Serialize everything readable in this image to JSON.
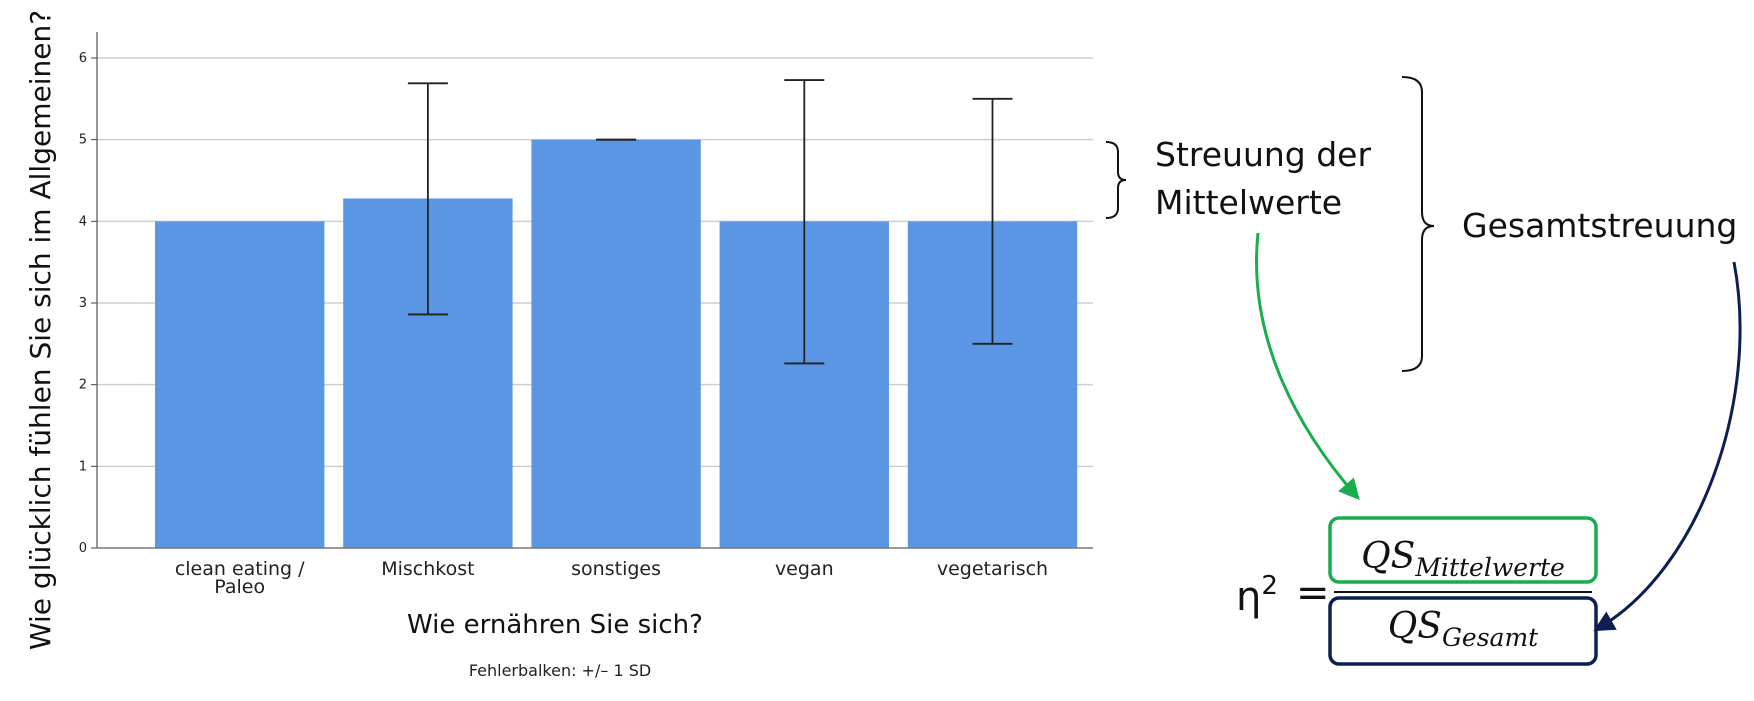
{
  "chart_data": {
    "type": "bar",
    "categories": [
      "clean eating /\nPaleo",
      "Mischkost",
      "sonstiges",
      "vegan",
      "vegetarisch"
    ],
    "values": [
      4.0,
      4.28,
      5.0,
      4.0,
      4.0
    ],
    "error_bars": [
      {
        "low": null,
        "high": null
      },
      {
        "low": 2.86,
        "high": 5.69
      },
      {
        "low": 5.0,
        "high": 5.0
      },
      {
        "low": 2.26,
        "high": 5.73
      },
      {
        "low": 2.5,
        "high": 5.5
      }
    ],
    "yticks": [
      0,
      1,
      2,
      3,
      4,
      5,
      6
    ],
    "ylim": [
      0,
      6
    ],
    "xlabel": "Wie ernähren Sie sich?",
    "ylabel": "Wie glücklich fühlen Sie sich im Allgemeinen?",
    "footnote": "Fehlerbalken: +/– 1 SD",
    "bar_color": "#5a96e3",
    "grid": true
  },
  "annotations": {
    "between_label_line1": "Streuung der",
    "between_label_line2": "Mittelwerte",
    "total_label": "Gesamtstreuung",
    "green_color": "#1aad4f",
    "navy_color": "#0d1f52"
  },
  "formula": {
    "lhs": "η",
    "exponent": "2",
    "equals": "=",
    "numerator_base": "QS",
    "numerator_sub": "Mittelwerte",
    "denominator_base": "QS",
    "denominator_sub": "Gesamt"
  }
}
